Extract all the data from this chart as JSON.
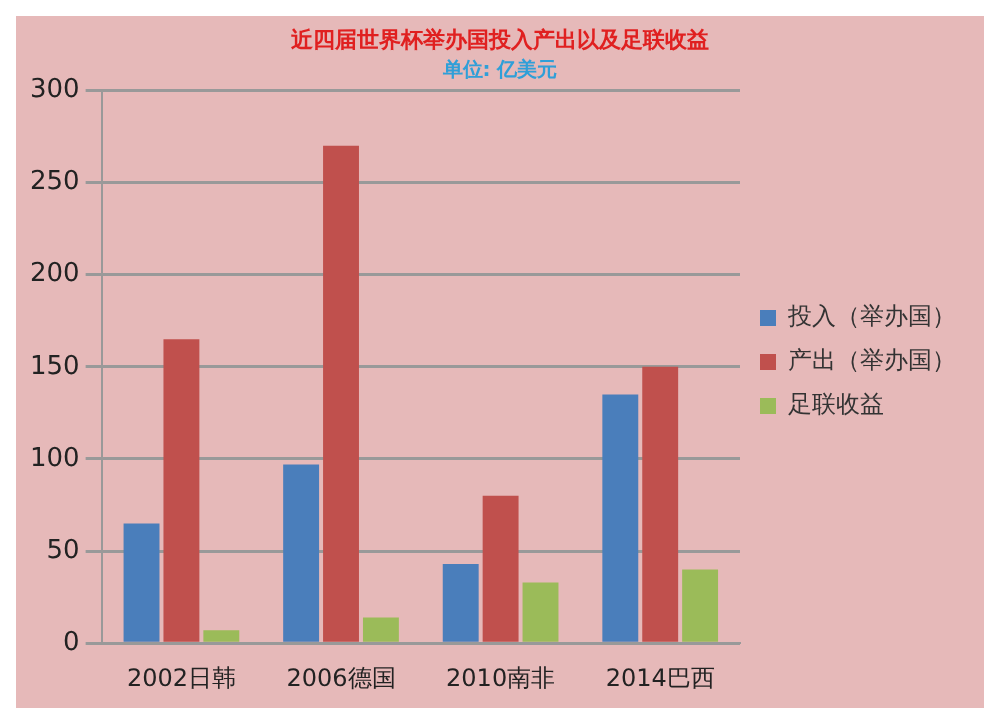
{
  "chart_data": {
    "type": "bar",
    "title": "近四届世界杯举办国投入产出以及足联收益",
    "subtitle": "单位: 亿美元",
    "categories": [
      "2002日韩",
      "2006德国",
      "2010南非",
      "2014巴西"
    ],
    "series": [
      {
        "name": "投入（举办国）",
        "color": "#4a7ebb",
        "values": [
          65,
          97,
          43,
          135
        ]
      },
      {
        "name": "产出（举办国）",
        "color": "#c0504d",
        "values": [
          165,
          270,
          80,
          150
        ]
      },
      {
        "name": "足联收益",
        "color": "#9bbb59",
        "values": [
          7,
          14,
          33,
          40
        ]
      }
    ],
    "ylim": [
      0,
      300
    ],
    "yticks": [
      0,
      50,
      100,
      150,
      200,
      250,
      300
    ],
    "grid": "y",
    "legend": "right"
  }
}
